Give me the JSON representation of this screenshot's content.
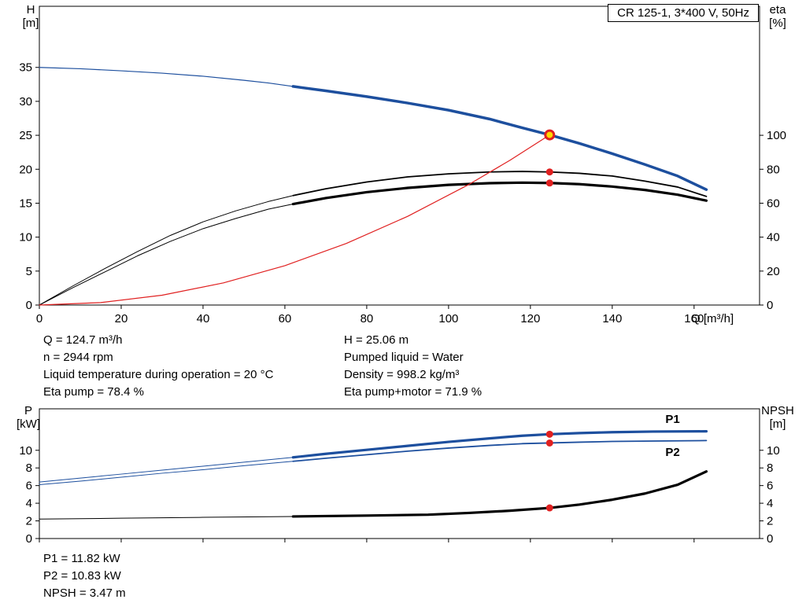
{
  "info": {
    "top_left": [
      "Q = 124.7 m³/h",
      "n = 2944 rpm",
      "Liquid temperature during operation = 20 °C",
      "Eta pump = 78.4 %"
    ],
    "top_right": [
      "H = 25.06 m",
      "Pumped liquid = Water",
      "Density = 998.2 kg/m³",
      "Eta pump+motor = 71.9 %"
    ],
    "bottom": [
      "P1 = 11.82 kW",
      "P2 = 10.83 kW",
      "NPSH = 3.47 m"
    ]
  },
  "colors": {
    "curve_blue": "#1d4f9e",
    "curve_black": "#000000",
    "curve_red": "#e02020",
    "duty_fill": "#ffd800"
  },
  "chart_data": [
    {
      "type": "line",
      "title": "CR 125-1, 3*400 V, 50Hz",
      "xlabel": "Q [m³/h]",
      "ylabel_left": [
        "H",
        "[m]"
      ],
      "ylabel_right": [
        "eta",
        "[%]"
      ],
      "grid": false,
      "x": {
        "min": 0,
        "max": 176,
        "ticks": [
          0,
          20,
          40,
          60,
          80,
          100,
          120,
          140,
          160
        ]
      },
      "y_left": {
        "min": 0,
        "max": 44,
        "ticks": [
          0,
          5,
          10,
          15,
          20,
          25,
          30,
          35
        ]
      },
      "y_right": {
        "min": 0,
        "max": 176,
        "ticks": [
          0,
          20,
          40,
          60,
          80,
          100
        ]
      },
      "series": [
        {
          "name": "eta-pump",
          "axis": "right",
          "color": "#000000",
          "width": 1,
          "bold_from": 62,
          "bold_width": 1.8,
          "points": [
            [
              0,
              0
            ],
            [
              8,
              11
            ],
            [
              16,
              21.5
            ],
            [
              24,
              31.5
            ],
            [
              32,
              41
            ],
            [
              40,
              49
            ],
            [
              48,
              55.5
            ],
            [
              56,
              61
            ],
            [
              62,
              64.5
            ],
            [
              70,
              68.5
            ],
            [
              80,
              72.5
            ],
            [
              90,
              75.5
            ],
            [
              100,
              77.3
            ],
            [
              110,
              78.4
            ],
            [
              118,
              78.7
            ],
            [
              124.7,
              78.4
            ],
            [
              132,
              77.6
            ],
            [
              140,
              76
            ],
            [
              148,
              73
            ],
            [
              156,
              69.5
            ],
            [
              163,
              64
            ]
          ]
        },
        {
          "name": "eta-pump-motor",
          "axis": "right",
          "color": "#000000",
          "width": 1,
          "bold_from": 62,
          "bold_width": 3.2,
          "points": [
            [
              0,
              0
            ],
            [
              8,
              10
            ],
            [
              16,
              19.5
            ],
            [
              24,
              29
            ],
            [
              32,
              37.5
            ],
            [
              40,
              45
            ],
            [
              48,
              51
            ],
            [
              56,
              56.5
            ],
            [
              62,
              59.5
            ],
            [
              70,
              63
            ],
            [
              80,
              66.5
            ],
            [
              90,
              69
            ],
            [
              100,
              70.8
            ],
            [
              110,
              71.8
            ],
            [
              118,
              72.1
            ],
            [
              124.7,
              71.9
            ],
            [
              132,
              71.2
            ],
            [
              140,
              69.8
            ],
            [
              148,
              67.8
            ],
            [
              156,
              65
            ],
            [
              163,
              61.5
            ]
          ]
        },
        {
          "name": "system-curve",
          "axis": "left",
          "color": "#e02020",
          "width": 1.2,
          "points": [
            [
              0,
              0
            ],
            [
              15,
              0.36
            ],
            [
              30,
              1.45
            ],
            [
              45,
              3.26
            ],
            [
              60,
              5.8
            ],
            [
              75,
              9.07
            ],
            [
              90,
              13.06
            ],
            [
              105,
              17.77
            ],
            [
              115,
              21.32
            ],
            [
              124.7,
              25.06
            ]
          ]
        },
        {
          "name": "pump-head",
          "axis": "left",
          "color": "#1d4f9e",
          "width": 1.2,
          "bold_from": 62,
          "bold_width": 3.5,
          "points": [
            [
              0,
              35.0
            ],
            [
              10,
              34.8
            ],
            [
              20,
              34.5
            ],
            [
              30,
              34.15
            ],
            [
              40,
              33.7
            ],
            [
              50,
              33.1
            ],
            [
              56,
              32.7
            ],
            [
              62,
              32.2
            ],
            [
              70,
              31.55
            ],
            [
              80,
              30.7
            ],
            [
              90,
              29.75
            ],
            [
              100,
              28.7
            ],
            [
              110,
              27.4
            ],
            [
              118,
              26.1
            ],
            [
              124.7,
              25.06
            ],
            [
              132,
              23.8
            ],
            [
              140,
              22.3
            ],
            [
              148,
              20.7
            ],
            [
              156,
              19.0
            ],
            [
              163,
              17.0
            ]
          ]
        }
      ],
      "markers": [
        {
          "x": 124.7,
          "y": 78.4,
          "axis": "right",
          "style": "dot",
          "name": "eta-pump-point"
        },
        {
          "x": 124.7,
          "y": 71.9,
          "axis": "right",
          "style": "dot",
          "name": "eta-motor-point"
        },
        {
          "x": 124.7,
          "y": 25.06,
          "axis": "left",
          "style": "duty",
          "name": "duty-point"
        }
      ],
      "annotations": []
    },
    {
      "type": "line",
      "title": "",
      "xlabel": "",
      "ylabel_left": [
        "P",
        "[kW]"
      ],
      "ylabel_right": [
        "NPSH",
        "[m]"
      ],
      "grid": false,
      "x": {
        "min": 0,
        "max": 176,
        "ticks": [
          0,
          20,
          40,
          60,
          80,
          100,
          120,
          140,
          160
        ],
        "labels": false
      },
      "y_left": {
        "min": 0,
        "max": 14.7,
        "ticks": [
          0,
          2,
          4,
          6,
          8,
          10
        ]
      },
      "y_right": {
        "min": 0,
        "max": 14.7,
        "ticks": [
          0,
          2,
          4,
          6,
          8,
          10
        ]
      },
      "series": [
        {
          "name": "P1",
          "axis": "left",
          "color": "#1d4f9e",
          "width": 1,
          "bold_from": 62,
          "bold_width": 3.2,
          "points": [
            [
              0,
              6.4
            ],
            [
              10,
              6.85
            ],
            [
              20,
              7.3
            ],
            [
              30,
              7.75
            ],
            [
              40,
              8.2
            ],
            [
              50,
              8.65
            ],
            [
              62,
              9.2
            ],
            [
              70,
              9.6
            ],
            [
              80,
              10.05
            ],
            [
              90,
              10.5
            ],
            [
              100,
              10.95
            ],
            [
              110,
              11.35
            ],
            [
              118,
              11.65
            ],
            [
              124.7,
              11.82
            ],
            [
              132,
              11.95
            ],
            [
              140,
              12.05
            ],
            [
              150,
              12.12
            ],
            [
              163,
              12.15
            ]
          ]
        },
        {
          "name": "P2",
          "axis": "left",
          "color": "#1d4f9e",
          "width": 1,
          "bold_from": 62,
          "bold_width": 1.8,
          "points": [
            [
              0,
              6.1
            ],
            [
              10,
              6.5
            ],
            [
              20,
              6.95
            ],
            [
              30,
              7.4
            ],
            [
              40,
              7.8
            ],
            [
              50,
              8.25
            ],
            [
              62,
              8.75
            ],
            [
              70,
              9.1
            ],
            [
              80,
              9.5
            ],
            [
              90,
              9.9
            ],
            [
              100,
              10.25
            ],
            [
              110,
              10.55
            ],
            [
              118,
              10.75
            ],
            [
              124.7,
              10.83
            ],
            [
              132,
              10.92
            ],
            [
              140,
              11.0
            ],
            [
              150,
              11.05
            ],
            [
              163,
              11.1
            ]
          ]
        },
        {
          "name": "NPSH",
          "axis": "left",
          "color": "#000000",
          "width": 1,
          "bold_from": 62,
          "bold_width": 3.2,
          "points": [
            [
              0,
              2.2
            ],
            [
              20,
              2.3
            ],
            [
              40,
              2.4
            ],
            [
              62,
              2.5
            ],
            [
              80,
              2.6
            ],
            [
              95,
              2.7
            ],
            [
              105,
              2.9
            ],
            [
              115,
              3.15
            ],
            [
              124.7,
              3.47
            ],
            [
              132,
              3.85
            ],
            [
              140,
              4.4
            ],
            [
              148,
              5.1
            ],
            [
              156,
              6.1
            ],
            [
              163,
              7.6
            ]
          ]
        }
      ],
      "markers": [
        {
          "x": 124.7,
          "y": 11.82,
          "axis": "left",
          "style": "dot",
          "name": "p1-point"
        },
        {
          "x": 124.7,
          "y": 10.83,
          "axis": "left",
          "style": "dot",
          "name": "p2-point"
        },
        {
          "x": 124.7,
          "y": 3.47,
          "axis": "left",
          "style": "dot",
          "name": "npsh-point"
        }
      ],
      "annotations": [
        {
          "x": 153,
          "y": 13.1,
          "text": "P1",
          "color": "#1d4f9e",
          "axis": "left"
        },
        {
          "x": 153,
          "y": 9.35,
          "text": "P2",
          "color": "#1d4f9e",
          "axis": "left"
        }
      ]
    }
  ]
}
